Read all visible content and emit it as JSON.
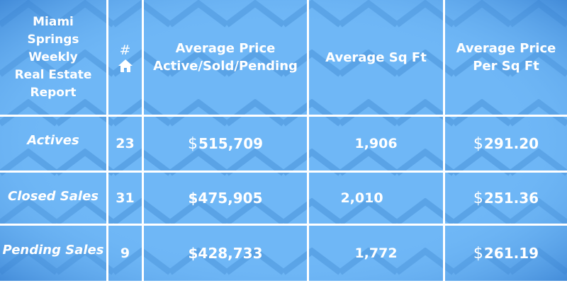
{
  "header": {
    "title": "Miami Springs Weekly Real Estate Report",
    "count_symbol": "#",
    "count_icon": "house-icon",
    "col_avg_price": "Average Price Active/Sold/Pending",
    "col_avg_sqft": "Average Sq Ft",
    "col_price_per_sqft": "Average Price Per Sq Ft"
  },
  "rows": [
    {
      "label": "Actives",
      "count": "23",
      "avg_price": "515,709",
      "avg_sqft": "1,906",
      "price_per_sqft": "291.20"
    },
    {
      "label": "Closed Sales",
      "count": "31",
      "avg_price": "475,905",
      "avg_sqft": "2,010",
      "price_per_sqft": "251.36"
    },
    {
      "label": "Pending Sales",
      "count": "9",
      "avg_price": "428,733",
      "avg_sqft": "1,772",
      "price_per_sqft": "261.19"
    }
  ],
  "currency_symbol": "$",
  "colors": {
    "background": "#6fb7f6",
    "edge_shadow": "#2a73c8",
    "chevron": "#5aa3e6",
    "text": "#ffffff"
  }
}
